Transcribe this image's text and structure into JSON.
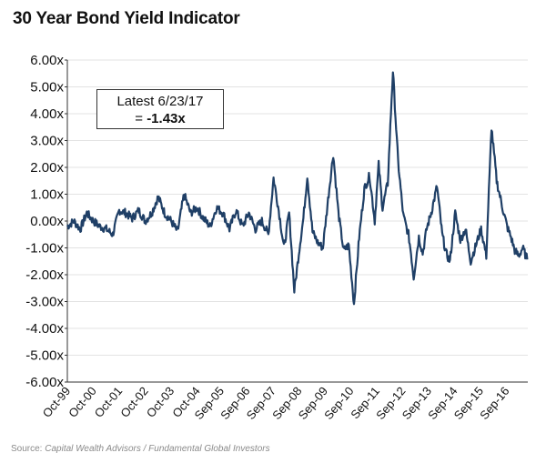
{
  "title": "30 Year Bond Yield Indicator",
  "source_label": "Source:",
  "source_text": "Capital Wealth Advisors / Fundamental Global Investors",
  "annotation": {
    "line1": "Latest 6/23/17",
    "eq": "= ",
    "value": "-1.43x"
  },
  "colors": {
    "series": "#1f3f66",
    "grid": "#e3e3e3",
    "axis": "#333333"
  },
  "chart_data": {
    "type": "line",
    "title": "30 Year Bond Yield Indicator",
    "ylim": [
      -6,
      6
    ],
    "yticks": [
      "6.00x",
      "5.00x",
      "4.00x",
      "3.00x",
      "2.00x",
      "1.00x",
      "0.00x",
      "-1.00x",
      "-2.00x",
      "-3.00x",
      "-4.00x",
      "-5.00x",
      "-6.00x"
    ],
    "ytick_values": [
      6,
      5,
      4,
      3,
      2,
      1,
      0,
      -1,
      -2,
      -3,
      -4,
      -5,
      -6
    ],
    "xlim": [
      1999.75,
      2017.5
    ],
    "xticks": [
      "Oct-99",
      "Oct-00",
      "Oct-01",
      "Oct-02",
      "Oct-03",
      "Oct-04",
      "Sep-05",
      "Sep-06",
      "Sep-07",
      "Sep-08",
      "Sep-09",
      "Sep-10",
      "Sep-11",
      "Sep-12",
      "Sep-13",
      "Sep-14",
      "Sep-15",
      "Sep-16"
    ],
    "xtick_values": [
      1999.75,
      2000.75,
      2001.75,
      2002.75,
      2003.75,
      2004.75,
      2005.67,
      2006.67,
      2007.67,
      2008.67,
      2009.67,
      2010.67,
      2011.67,
      2012.67,
      2013.67,
      2014.67,
      2015.67,
      2016.67
    ],
    "series": [
      {
        "x": [
          1999.75,
          2000.0,
          2000.25,
          2000.5,
          2000.75,
          2001.0,
          2001.25,
          2001.5,
          2001.75,
          2002.0,
          2002.25,
          2002.5,
          2002.75,
          2003.0,
          2003.25,
          2003.5,
          2003.75,
          2004.0,
          2004.25,
          2004.5,
          2004.75,
          2005.0,
          2005.25,
          2005.5,
          2005.75,
          2006.0,
          2006.25,
          2006.5,
          2006.75,
          2007.0,
          2007.25,
          2007.5,
          2007.7,
          2007.9,
          2008.1,
          2008.3,
          2008.5,
          2008.75,
          2008.85,
          2009.0,
          2009.2,
          2009.4,
          2009.6,
          2009.8,
          2010.0,
          2010.2,
          2010.4,
          2010.6,
          2010.8,
          2011.0,
          2011.2,
          2011.4,
          2011.6,
          2011.75,
          2011.9,
          2012.1,
          2012.3,
          2012.5,
          2012.7,
          2012.9,
          2013.0,
          2013.1,
          2013.3,
          2013.45,
          2013.6,
          2013.8,
          2014.0,
          2014.2,
          2014.35,
          2014.5,
          2014.7,
          2014.9,
          2015.1,
          2015.3,
          2015.5,
          2015.7,
          2015.9,
          2016.1,
          2016.3,
          2016.5,
          2016.7,
          2016.85,
          2017.0,
          2017.15,
          2017.3,
          2017.48
        ],
        "y": [
          -0.2,
          0.0,
          -0.3,
          0.3,
          0.0,
          -0.2,
          -0.3,
          -0.5,
          0.4,
          0.3,
          0.1,
          0.4,
          0.0,
          0.3,
          0.9,
          0.3,
          0.0,
          -0.4,
          1.0,
          0.3,
          0.5,
          0.1,
          -0.2,
          0.5,
          0.3,
          -0.3,
          0.4,
          -0.2,
          0.3,
          -0.3,
          0.0,
          -0.5,
          1.6,
          0.4,
          -1.0,
          0.3,
          -2.6,
          -0.6,
          0.1,
          1.7,
          -0.4,
          -0.8,
          -1.0,
          0.8,
          2.5,
          0.3,
          -1.1,
          -0.9,
          -3.1,
          -0.6,
          1.2,
          1.7,
          0.0,
          2.1,
          0.5,
          1.4,
          5.6,
          2.2,
          0.2,
          -0.5,
          -1.2,
          -2.1,
          -0.6,
          -1.2,
          -0.3,
          0.4,
          1.3,
          -0.5,
          -1.2,
          -1.5,
          0.3,
          -0.7,
          -0.3,
          -1.5,
          -0.9,
          -0.3,
          -1.3,
          3.5,
          1.5,
          0.6,
          -0.2,
          -0.6,
          -1.1,
          -1.3,
          -1.0,
          -1.43
        ]
      }
    ]
  }
}
